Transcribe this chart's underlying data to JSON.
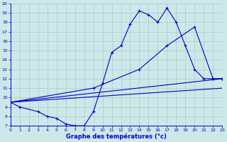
{
  "xlabel": "Graphe des températures (°c)",
  "bg_color": "#cce8e8",
  "grid_color": "#aacccc",
  "line_color": "#0000cc",
  "ylim": [
    7,
    20
  ],
  "xlim": [
    0,
    23
  ],
  "yticks": [
    7,
    8,
    9,
    10,
    11,
    12,
    13,
    14,
    15,
    16,
    17,
    18,
    19,
    20
  ],
  "xticks": [
    0,
    1,
    2,
    3,
    4,
    5,
    6,
    7,
    8,
    9,
    10,
    11,
    12,
    13,
    14,
    15,
    16,
    17,
    18,
    19,
    20,
    21,
    22,
    23
  ],
  "line1_x": [
    0,
    1,
    3,
    4,
    5,
    6,
    7,
    8,
    9,
    10,
    11,
    12,
    13,
    14,
    15,
    16,
    17,
    18,
    19,
    20,
    21,
    22,
    23
  ],
  "line1_y": [
    9.5,
    9.0,
    8.5,
    8.0,
    7.8,
    7.2,
    7.0,
    7.0,
    8.5,
    11.5,
    14.8,
    15.5,
    17.8,
    19.2,
    18.8,
    18.0,
    19.5,
    18.0,
    15.5,
    13.0,
    12.0,
    12.0,
    12.0
  ],
  "line2_x": [
    0,
    9,
    14,
    17,
    20,
    22,
    23
  ],
  "line2_y": [
    9.5,
    11.0,
    13.0,
    15.5,
    17.5,
    12.0,
    12.0
  ],
  "line3_x": [
    0,
    23
  ],
  "line3_y": [
    9.5,
    12.0
  ],
  "line4_x": [
    0,
    23
  ],
  "line4_y": [
    9.5,
    11.0
  ]
}
